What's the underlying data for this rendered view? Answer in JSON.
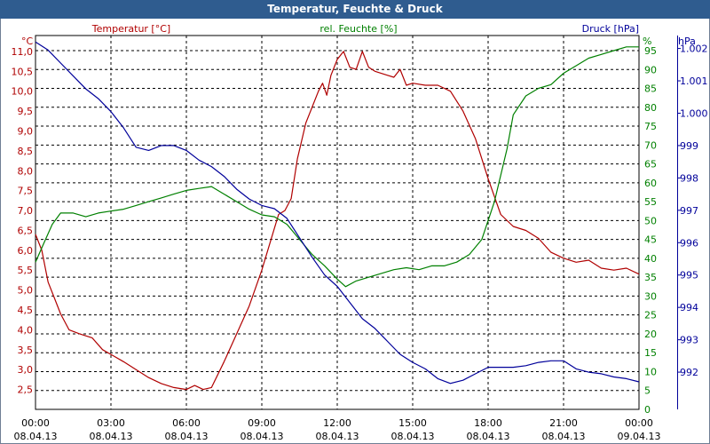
{
  "window": {
    "title": "Temperatur, Feuchte & Druck"
  },
  "colors": {
    "temperature": "#b00000",
    "humidity": "#008000",
    "pressure": "#00009a",
    "grid": "#000000",
    "titlebar": "#2f5c8f"
  },
  "chart_data": {
    "type": "line",
    "title": "Temperatur, Feuchte & Druck",
    "grid": true,
    "x": {
      "start": "2013-04-08 00:00",
      "end": "2013-04-09 00:00",
      "tick_labels": [
        [
          "00:00",
          "08.04.13"
        ],
        [
          "03:00",
          "08.04.13"
        ],
        [
          "06:00",
          "08.04.13"
        ],
        [
          "09:00",
          "08.04.13"
        ],
        [
          "12:00",
          "08.04.13"
        ],
        [
          "15:00",
          "08.04.13"
        ],
        [
          "18:00",
          "08.04.13"
        ],
        [
          "21:00",
          "08.04.13"
        ],
        [
          "00:00",
          "09.04.13"
        ]
      ]
    },
    "axes": {
      "temperature": {
        "unit": "°C",
        "label": "Temperatur [°C]",
        "side": "left",
        "range": [
          2.0,
          11.4
        ],
        "ticks": [
          "2,5",
          "3,0",
          "3,5",
          "4,0",
          "4,5",
          "5,0",
          "5,5",
          "6,0",
          "6,5",
          "7,0",
          "7,5",
          "8,0",
          "8,5",
          "9,0",
          "9,5",
          "10,0",
          "10,5",
          "11,0"
        ]
      },
      "humidity": {
        "unit": "%",
        "label": "rel. Feuchte [%]",
        "side": "right",
        "range": [
          0,
          99
        ],
        "ticks": [
          "0",
          "5",
          "10",
          "15",
          "20",
          "25",
          "30",
          "35",
          "40",
          "45",
          "50",
          "55",
          "60",
          "65",
          "70",
          "75",
          "80",
          "85",
          "90",
          "95"
        ]
      },
      "pressure": {
        "unit": "hPa",
        "label": "Druck [hPa]",
        "side": "right",
        "range": [
          990.85,
          1002.4
        ],
        "ticks": [
          "992",
          "993",
          "994",
          "995",
          "996",
          "997",
          "998",
          "999",
          "1.000",
          "1.001",
          "1.002"
        ]
      }
    },
    "series": [
      {
        "name": "Temperatur [°C]",
        "axis": "temperature",
        "points": [
          [
            "2013-04-08 00:00",
            6.4
          ],
          [
            "2013-04-08 00:15",
            6.0
          ],
          [
            "2013-04-08 00:30",
            5.2
          ],
          [
            "2013-04-08 00:45",
            4.8
          ],
          [
            "2013-04-08 01:00",
            4.4
          ],
          [
            "2013-04-08 01:20",
            4.0
          ],
          [
            "2013-04-08 01:45",
            3.9
          ],
          [
            "2013-04-08 02:15",
            3.8
          ],
          [
            "2013-04-08 02:40",
            3.5
          ],
          [
            "2013-04-08 03:05",
            3.35
          ],
          [
            "2013-04-08 03:30",
            3.2
          ],
          [
            "2013-04-08 04:00",
            3.0
          ],
          [
            "2013-04-08 04:30",
            2.8
          ],
          [
            "2013-04-08 05:00",
            2.65
          ],
          [
            "2013-04-08 05:30",
            2.55
          ],
          [
            "2013-04-08 06:00",
            2.5
          ],
          [
            "2013-04-08 06:20",
            2.6
          ],
          [
            "2013-04-08 06:40",
            2.5
          ],
          [
            "2013-04-08 07:00",
            2.55
          ],
          [
            "2013-04-08 07:30",
            3.2
          ],
          [
            "2013-04-08 08:00",
            3.9
          ],
          [
            "2013-04-08 08:30",
            4.6
          ],
          [
            "2013-04-08 09:00",
            5.5
          ],
          [
            "2013-04-08 09:20",
            6.2
          ],
          [
            "2013-04-08 09:40",
            6.9
          ],
          [
            "2013-04-08 09:55",
            7.0
          ],
          [
            "2013-04-08 10:10",
            7.3
          ],
          [
            "2013-04-08 10:25",
            8.3
          ],
          [
            "2013-04-08 10:45",
            9.2
          ],
          [
            "2013-04-08 11:00",
            9.6
          ],
          [
            "2013-04-08 11:15",
            10.0
          ],
          [
            "2013-04-08 11:25",
            10.2
          ],
          [
            "2013-04-08 11:35",
            9.9
          ],
          [
            "2013-04-08 11:45",
            10.4
          ],
          [
            "2013-04-08 12:00",
            10.8
          ],
          [
            "2013-04-08 12:15",
            11.0
          ],
          [
            "2013-04-08 12:30",
            10.6
          ],
          [
            "2013-04-08 12:45",
            10.55
          ],
          [
            "2013-04-08 13:00",
            11.0
          ],
          [
            "2013-04-08 13:15",
            10.6
          ],
          [
            "2013-04-08 13:30",
            10.5
          ],
          [
            "2013-04-08 14:00",
            10.4
          ],
          [
            "2013-04-08 14:15",
            10.35
          ],
          [
            "2013-04-08 14:30",
            10.55
          ],
          [
            "2013-04-08 14:45",
            10.15
          ],
          [
            "2013-04-08 15:00",
            10.2
          ],
          [
            "2013-04-08 15:30",
            10.15
          ],
          [
            "2013-04-08 16:00",
            10.15
          ],
          [
            "2013-04-08 16:30",
            10.0
          ],
          [
            "2013-04-08 17:00",
            9.5
          ],
          [
            "2013-04-08 17:30",
            8.8
          ],
          [
            "2013-04-08 18:00",
            7.8
          ],
          [
            "2013-04-08 18:30",
            6.9
          ],
          [
            "2013-04-08 19:00",
            6.6
          ],
          [
            "2013-04-08 19:30",
            6.5
          ],
          [
            "2013-04-08 20:00",
            6.3
          ],
          [
            "2013-04-08 20:30",
            5.95
          ],
          [
            "2013-04-08 21:00",
            5.8
          ],
          [
            "2013-04-08 21:30",
            5.7
          ],
          [
            "2013-04-08 22:00",
            5.75
          ],
          [
            "2013-04-08 22:30",
            5.55
          ],
          [
            "2013-04-08 23:00",
            5.5
          ],
          [
            "2013-04-08 23:30",
            5.55
          ],
          [
            "2013-04-09 00:00",
            5.4
          ]
        ]
      },
      {
        "name": "rel. Feuchte [%]",
        "axis": "humidity",
        "points": [
          [
            "2013-04-08 00:00",
            39
          ],
          [
            "2013-04-08 00:20",
            44
          ],
          [
            "2013-04-08 00:40",
            49
          ],
          [
            "2013-04-08 01:00",
            52
          ],
          [
            "2013-04-08 01:30",
            52
          ],
          [
            "2013-04-08 02:00",
            51
          ],
          [
            "2013-04-08 02:30",
            52
          ],
          [
            "2013-04-08 03:00",
            52.5
          ],
          [
            "2013-04-08 03:30",
            53
          ],
          [
            "2013-04-08 04:00",
            54
          ],
          [
            "2013-04-08 04:30",
            55
          ],
          [
            "2013-04-08 05:00",
            56
          ],
          [
            "2013-04-08 05:30",
            57
          ],
          [
            "2013-04-08 06:00",
            58
          ],
          [
            "2013-04-08 06:30",
            58.5
          ],
          [
            "2013-04-08 07:00",
            59
          ],
          [
            "2013-04-08 07:30",
            57
          ],
          [
            "2013-04-08 08:00",
            55
          ],
          [
            "2013-04-08 08:30",
            53
          ],
          [
            "2013-04-08 09:00",
            51.5
          ],
          [
            "2013-04-08 09:30",
            51
          ],
          [
            "2013-04-08 10:00",
            49
          ],
          [
            "2013-04-08 10:30",
            45
          ],
          [
            "2013-04-08 11:00",
            41
          ],
          [
            "2013-04-08 11:30",
            38
          ],
          [
            "2013-04-08 12:00",
            34.5
          ],
          [
            "2013-04-08 12:20",
            32.5
          ],
          [
            "2013-04-08 12:45",
            34
          ],
          [
            "2013-04-08 13:15",
            35
          ],
          [
            "2013-04-08 13:45",
            36
          ],
          [
            "2013-04-08 14:15",
            37
          ],
          [
            "2013-04-08 14:45",
            37.5
          ],
          [
            "2013-04-08 15:15",
            37
          ],
          [
            "2013-04-08 15:45",
            38
          ],
          [
            "2013-04-08 16:15",
            38
          ],
          [
            "2013-04-08 16:45",
            39
          ],
          [
            "2013-04-08 17:15",
            41
          ],
          [
            "2013-04-08 17:45",
            45
          ],
          [
            "2013-04-08 18:15",
            55
          ],
          [
            "2013-04-08 18:45",
            69
          ],
          [
            "2013-04-08 19:00",
            78
          ],
          [
            "2013-04-08 19:30",
            83
          ],
          [
            "2013-04-08 20:00",
            85
          ],
          [
            "2013-04-08 20:30",
            86
          ],
          [
            "2013-04-08 21:00",
            89
          ],
          [
            "2013-04-08 21:30",
            91
          ],
          [
            "2013-04-08 22:00",
            93
          ],
          [
            "2013-04-08 22:30",
            94
          ],
          [
            "2013-04-08 23:00",
            95
          ],
          [
            "2013-04-08 23:30",
            96
          ],
          [
            "2013-04-09 00:00",
            96
          ]
        ]
      },
      {
        "name": "Druck [hPa]",
        "axis": "pressure",
        "points": [
          [
            "2013-04-08 00:00",
            1002.2
          ],
          [
            "2013-04-08 00:30",
            1001.95
          ],
          [
            "2013-04-08 01:00",
            1001.55
          ],
          [
            "2013-04-08 01:30",
            1001.15
          ],
          [
            "2013-04-08 02:00",
            1000.75
          ],
          [
            "2013-04-08 02:30",
            1000.45
          ],
          [
            "2013-04-08 03:00",
            1000.05
          ],
          [
            "2013-04-08 03:30",
            999.55
          ],
          [
            "2013-04-08 04:00",
            998.95
          ],
          [
            "2013-04-08 04:30",
            998.85
          ],
          [
            "2013-04-08 05:00",
            999.0
          ],
          [
            "2013-04-08 05:30",
            999.0
          ],
          [
            "2013-04-08 06:00",
            998.85
          ],
          [
            "2013-04-08 06:30",
            998.55
          ],
          [
            "2013-04-08 07:00",
            998.35
          ],
          [
            "2013-04-08 07:30",
            998.05
          ],
          [
            "2013-04-08 08:00",
            997.65
          ],
          [
            "2013-04-08 08:30",
            997.35
          ],
          [
            "2013-04-08 09:00",
            997.15
          ],
          [
            "2013-04-08 09:30",
            997.05
          ],
          [
            "2013-04-08 10:00",
            996.75
          ],
          [
            "2013-04-08 10:30",
            996.15
          ],
          [
            "2013-04-08 11:00",
            995.55
          ],
          [
            "2013-04-08 11:30",
            995.0
          ],
          [
            "2013-04-08 12:00",
            994.65
          ],
          [
            "2013-04-08 12:30",
            994.15
          ],
          [
            "2013-04-08 13:00",
            993.65
          ],
          [
            "2013-04-08 13:30",
            993.35
          ],
          [
            "2013-04-08 14:00",
            992.95
          ],
          [
            "2013-04-08 14:30",
            992.55
          ],
          [
            "2013-04-08 15:00",
            992.3
          ],
          [
            "2013-04-08 15:30",
            992.1
          ],
          [
            "2013-04-08 16:00",
            991.8
          ],
          [
            "2013-04-08 16:30",
            991.65
          ],
          [
            "2013-04-08 17:00",
            991.75
          ],
          [
            "2013-04-08 17:30",
            991.95
          ],
          [
            "2013-04-08 18:00",
            992.15
          ],
          [
            "2013-04-08 18:30",
            992.15
          ],
          [
            "2013-04-08 19:00",
            992.15
          ],
          [
            "2013-04-08 19:30",
            992.2
          ],
          [
            "2013-04-08 20:00",
            992.3
          ],
          [
            "2013-04-08 20:30",
            992.35
          ],
          [
            "2013-04-08 21:00",
            992.35
          ],
          [
            "2013-04-08 21:30",
            992.1
          ],
          [
            "2013-04-08 22:00",
            992.0
          ],
          [
            "2013-04-08 22:30",
            991.95
          ],
          [
            "2013-04-08 23:00",
            991.85
          ],
          [
            "2013-04-08 23:30",
            991.8
          ],
          [
            "2013-04-09 00:00",
            991.7
          ]
        ]
      }
    ]
  }
}
